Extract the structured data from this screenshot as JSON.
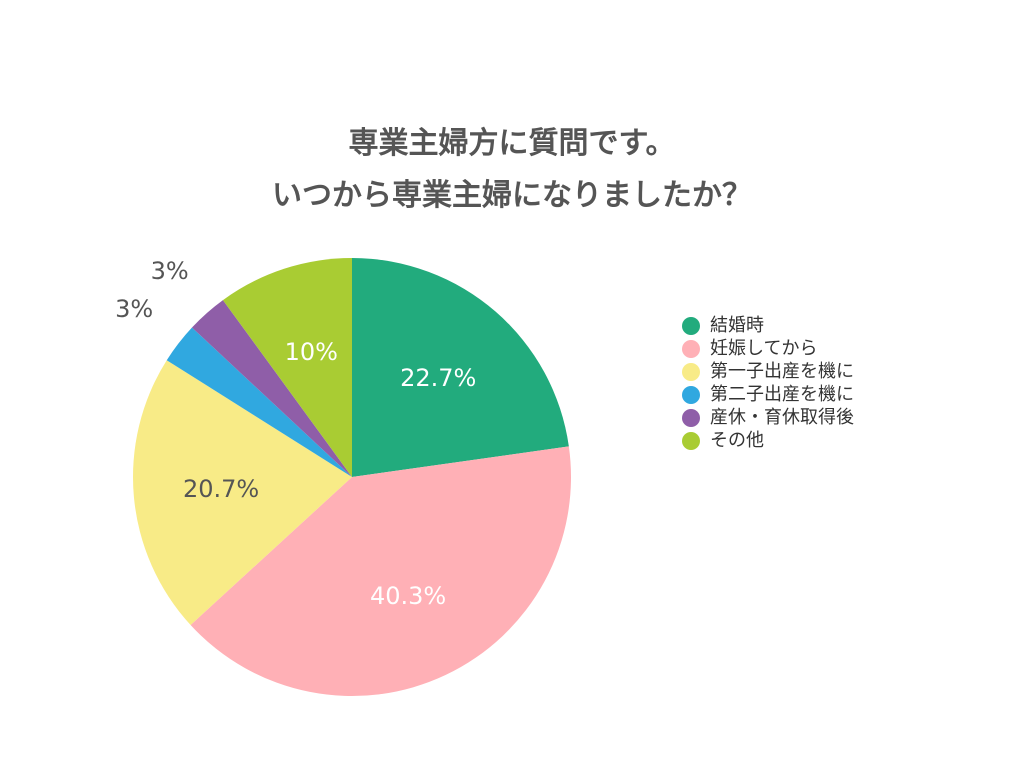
{
  "chart_data": {
    "type": "pie",
    "title": [
      "専業主婦方に質問です。",
      "いつから専業主婦になりましたか？"
    ],
    "slices": [
      {
        "name": "結婚時",
        "value": 22.7,
        "label": "22.7%",
        "color": "#22ab7d",
        "label_color": "#ffffff"
      },
      {
        "name": "妊娠してから",
        "value": 40.3,
        "label": "40.3%",
        "color": "#ffb0b6",
        "label_color": "#ffffff"
      },
      {
        "name": "第一子出産を機に",
        "value": 20.7,
        "label": "20.7%",
        "color": "#f8eb87",
        "label_color": "#555555"
      },
      {
        "name": "第二子出産を機に",
        "value": 3,
        "label": "3%",
        "color": "#30a8e0",
        "label_color": "#555555"
      },
      {
        "name": "産休・育休取得後",
        "value": 3,
        "label": "3%",
        "color": "#8f5ea8",
        "label_color": "#555555"
      },
      {
        "name": "その他",
        "value": 10,
        "label": "10%",
        "color": "#a9cc33",
        "label_color": "#ffffff"
      }
    ],
    "legend_position": "right"
  }
}
